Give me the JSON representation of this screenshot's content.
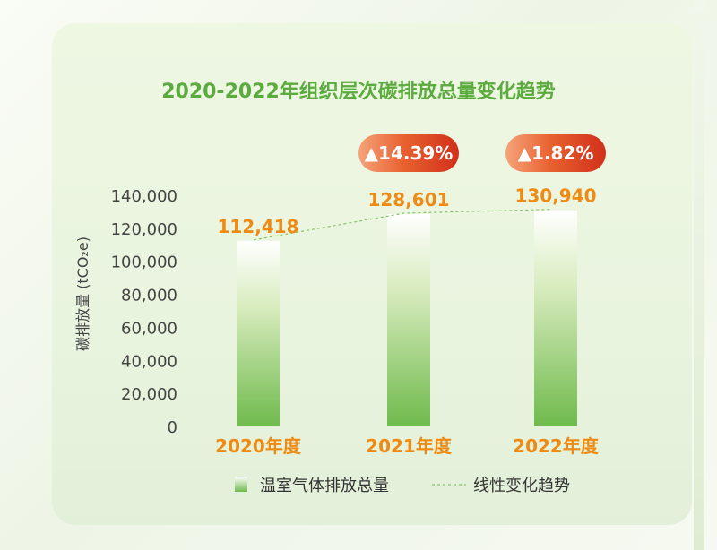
{
  "chart_data": {
    "type": "bar",
    "title": "2020-2022年组织层次碳排放总量变化趋势",
    "ylabel": "碳排放量 (tCO₂e)",
    "categories": [
      "2020年度",
      "2021年度",
      "2022年度"
    ],
    "series": [
      {
        "name": "温室气体排放总量",
        "values": [
          112418,
          128601,
          130940
        ]
      }
    ],
    "value_labels": [
      "112,418",
      "128,601",
      "130,940"
    ],
    "trendline": {
      "name": "线性变化趋势",
      "style": "dashed"
    },
    "growth_badges": [
      {
        "category": "2021年度",
        "label": "▲14.39%"
      },
      {
        "category": "2022年度",
        "label": "▲1.82%"
      }
    ],
    "ylim": [
      0,
      140000
    ],
    "yticks": [
      "0",
      "20,000",
      "40,000",
      "60,000",
      "80,000",
      "100,000",
      "120,000",
      "140,000"
    ],
    "legend_position": "bottom",
    "grid": false,
    "colors": {
      "title": "#5cab3e",
      "bar_top": "#ffffff",
      "bar_bottom": "#6fba4c",
      "value_label": "#ef8a12",
      "category_label": "#ef8a12",
      "trendline": "#8cc36a",
      "badge_left": "#f5a37a",
      "badge_right": "#d83c1f"
    }
  }
}
